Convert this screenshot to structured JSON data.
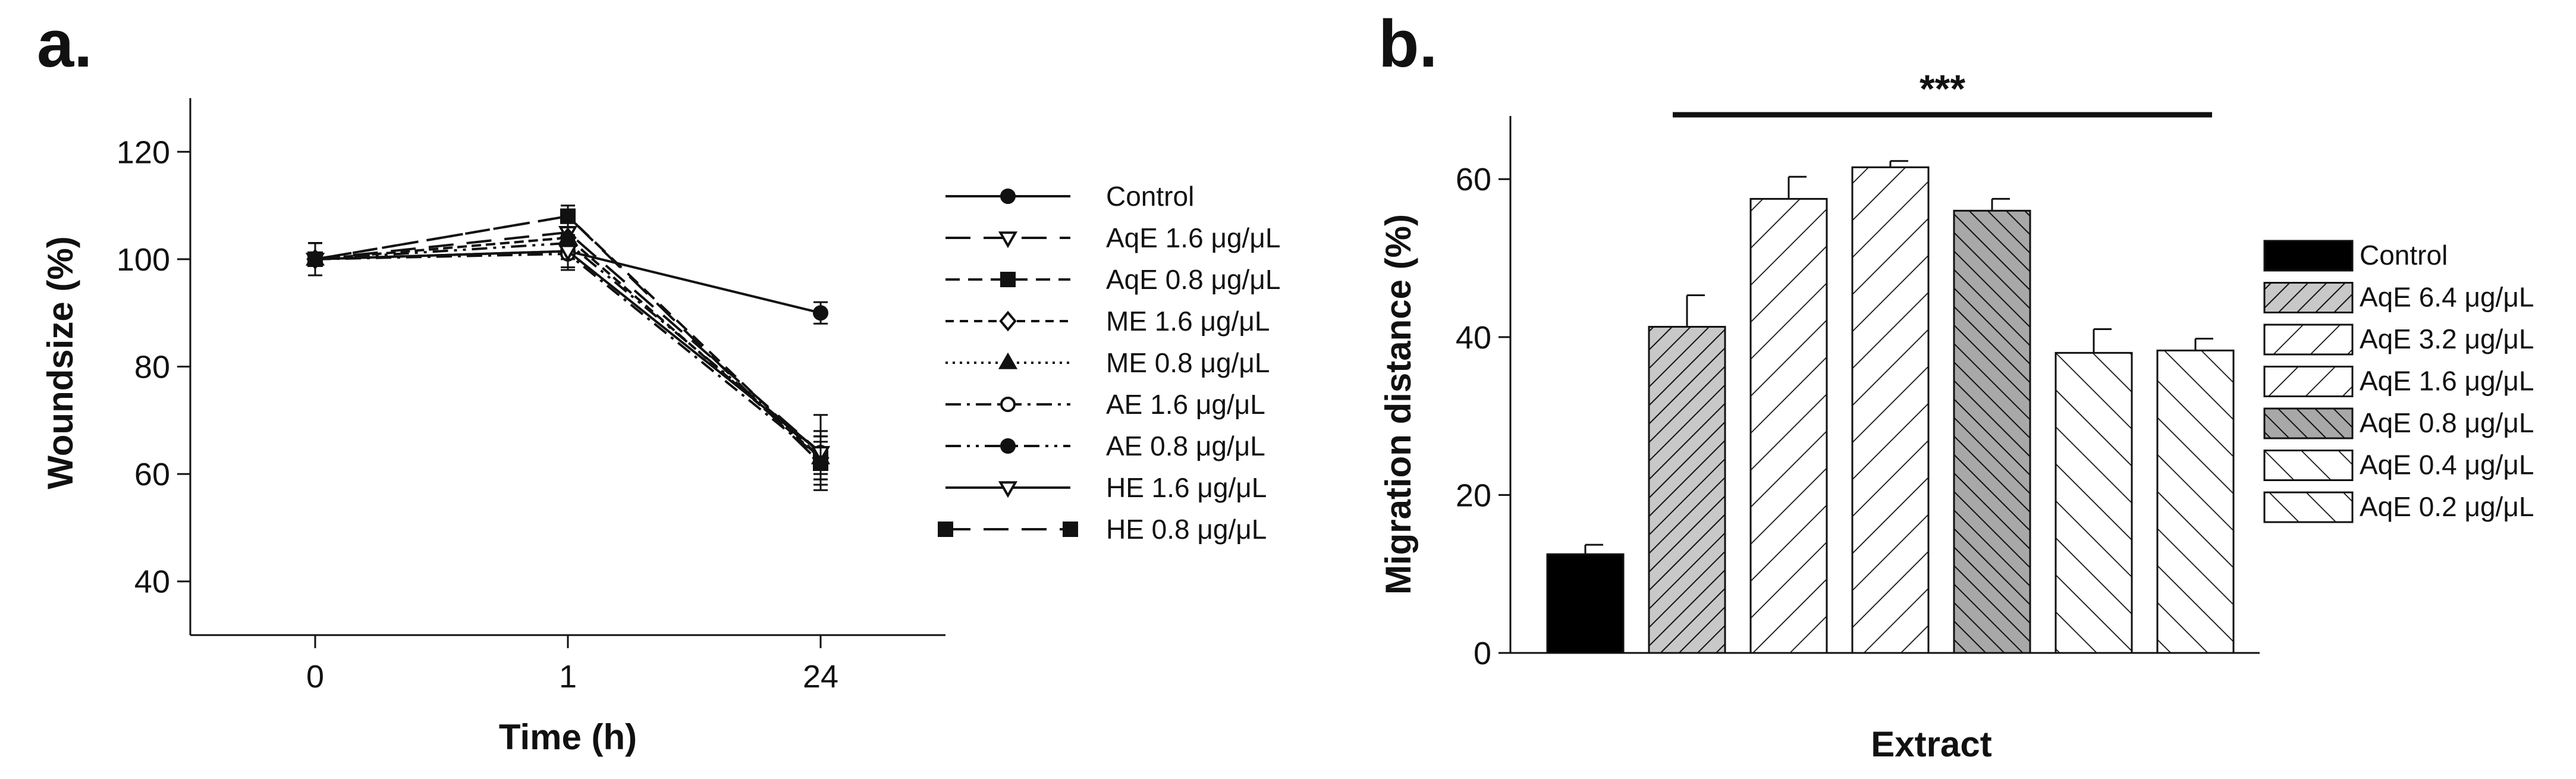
{
  "panels": [
    {
      "letter": "a."
    },
    {
      "letter": "b."
    }
  ],
  "chart_data": [
    {
      "type": "line",
      "title": "",
      "xlabel": "Time (h)",
      "ylabel": "Woundsize (%)",
      "x": [
        "0",
        "1",
        "24"
      ],
      "ylim": [
        30,
        130
      ],
      "yticks": [
        40,
        60,
        80,
        100,
        120
      ],
      "grid": false,
      "legend_position": "right",
      "series": [
        {
          "name": "Control",
          "values": [
            100,
            101.5,
            90
          ],
          "errors": [
            3,
            3,
            2
          ],
          "marker": "circle-filled",
          "dash": "solid"
        },
        {
          "name": "AqE 1.6 μg/μL",
          "values": [
            100,
            105,
            64
          ],
          "errors": [
            3,
            3,
            7
          ],
          "marker": "triangle-down-open",
          "dash": "longdash"
        },
        {
          "name": "AqE 0.8 μg/μL",
          "values": [
            100,
            108,
            63
          ],
          "errors": [
            3,
            2,
            4
          ],
          "marker": "square-filled",
          "dash": "dash"
        },
        {
          "name": "ME 1.6 μg/μL",
          "values": [
            100,
            104,
            63
          ],
          "errors": [
            3,
            3,
            4
          ],
          "marker": "diamond-open",
          "dash": "shortdash"
        },
        {
          "name": "ME 0.8 μg/μL",
          "values": [
            100,
            104,
            63
          ],
          "errors": [
            3,
            3,
            4
          ],
          "marker": "triangle-up-filled",
          "dash": "dot"
        },
        {
          "name": "AE 1.6 μg/μL",
          "values": [
            100,
            101,
            63
          ],
          "errors": [
            3,
            3,
            4
          ],
          "marker": "circle-open",
          "dash": "dashdot"
        },
        {
          "name": "AE 0.8 μg/μL",
          "values": [
            100,
            103,
            64
          ],
          "errors": [
            3,
            3,
            4
          ],
          "marker": "circle-filled",
          "dash": "dashdotdot"
        },
        {
          "name": "HE 1.6 μg/μL",
          "values": [
            100,
            101.5,
            64
          ],
          "errors": [
            3,
            3,
            4
          ],
          "marker": "triangle-down-open",
          "dash": "solid"
        },
        {
          "name": "HE 0.8 μg/μL",
          "values": [
            100,
            108,
            62
          ],
          "errors": [
            3,
            2,
            4
          ],
          "marker": "square-filled",
          "dash": "longdash"
        }
      ]
    },
    {
      "type": "bar",
      "title": "",
      "xlabel": "Extract",
      "ylabel": "Migration distance (%)",
      "ylim": [
        0,
        68
      ],
      "yticks": [
        0,
        20,
        40,
        60
      ],
      "grid": false,
      "legend_position": "right",
      "significance": {
        "label": "***",
        "from_bar": 1,
        "to_bar": 6
      },
      "categories": [
        "Control",
        "AqE 6.4 μg/μL",
        "AqE 3.2 μg/μL",
        "AqE 1.6 μg/μL",
        "AqE 0.8 μg/μL",
        "AqE 0.4 μg/μL",
        "AqE 0.2 μg/μL"
      ],
      "values": [
        12.5,
        41.3,
        57.5,
        61.5,
        56.0,
        38.0,
        38.3
      ],
      "errors": [
        1.2,
        4.0,
        2.8,
        0.8,
        1.5,
        3.0,
        1.5
      ],
      "fills": [
        {
          "kind": "solid",
          "color": "#000000"
        },
        {
          "kind": "hatch",
          "dir": "up",
          "bg": "#c8c8c8",
          "dense": true
        },
        {
          "kind": "hatch",
          "dir": "up",
          "bg": "#ffffff",
          "dense": false
        },
        {
          "kind": "hatch",
          "dir": "up",
          "bg": "#ffffff",
          "dense": false
        },
        {
          "kind": "hatch",
          "dir": "down",
          "bg": "#a8a8a8",
          "dense": true
        },
        {
          "kind": "hatch",
          "dir": "down",
          "bg": "#ffffff",
          "dense": false
        },
        {
          "kind": "hatch",
          "dir": "down",
          "bg": "#ffffff",
          "dense": false
        }
      ]
    }
  ]
}
